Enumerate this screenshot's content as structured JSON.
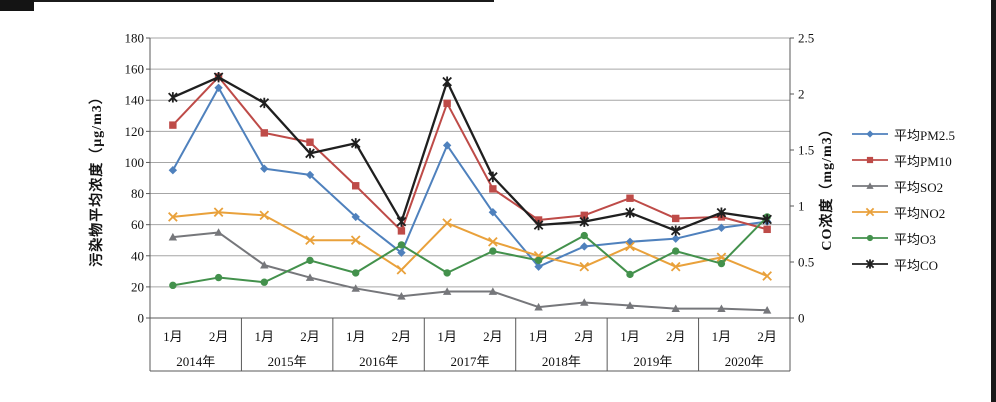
{
  "chart_data": {
    "type": "line",
    "title": "",
    "grid": true,
    "legend_position": "right",
    "year_groups": [
      {
        "year": "2014年",
        "months": [
          "1月",
          "2月"
        ]
      },
      {
        "year": "2015年",
        "months": [
          "1月",
          "2月"
        ]
      },
      {
        "year": "2016年",
        "months": [
          "1月",
          "2月"
        ]
      },
      {
        "year": "2017年",
        "months": [
          "1月",
          "2月"
        ]
      },
      {
        "year": "2018年",
        "months": [
          "1月",
          "2月"
        ]
      },
      {
        "year": "2019年",
        "months": [
          "1月",
          "2月"
        ]
      },
      {
        "year": "2020年",
        "months": [
          "1月",
          "2月"
        ]
      }
    ],
    "left_axis": {
      "title": "污染物平均浓度（μg/m3）",
      "min": 0,
      "max": 180,
      "step": 20
    },
    "right_axis": {
      "title": "CO浓度（mg/m3）",
      "min": 0,
      "max": 2.5,
      "step": 0.5
    },
    "series": [
      {
        "key": "pm25",
        "name": "平均PM2.5",
        "color": "#4F81BD",
        "marker": "diamond",
        "axis": "left",
        "values": [
          95,
          148,
          96,
          92,
          65,
          42,
          111,
          68,
          33,
          46,
          49,
          51,
          58,
          62
        ]
      },
      {
        "key": "pm10",
        "name": "平均PM10",
        "color": "#BE4B48",
        "marker": "square",
        "axis": "left",
        "values": [
          124,
          155,
          119,
          113,
          85,
          56,
          138,
          83,
          63,
          66,
          77,
          64,
          65,
          57
        ]
      },
      {
        "key": "so2",
        "name": "平均SO2",
        "color": "#76777B",
        "marker": "triangle",
        "axis": "left",
        "values": [
          52,
          55,
          34,
          26,
          19,
          14,
          17,
          17,
          7,
          10,
          8,
          6,
          6,
          5
        ]
      },
      {
        "key": "no2",
        "name": "平均NO2",
        "color": "#E9A13B",
        "marker": "x",
        "axis": "left",
        "values": [
          65,
          68,
          66,
          50,
          50,
          31,
          61,
          49,
          40,
          33,
          46,
          33,
          39,
          27
        ]
      },
      {
        "key": "o3",
        "name": "平均O3",
        "color": "#43914C",
        "marker": "circle",
        "axis": "left",
        "values": [
          21,
          26,
          23,
          37,
          29,
          47,
          29,
          43,
          37,
          53,
          28,
          43,
          35,
          65
        ]
      },
      {
        "key": "co",
        "name": "平均CO",
        "color": "#1F1F1F",
        "marker": "star",
        "axis": "right",
        "values": [
          1.97,
          2.15,
          1.92,
          1.47,
          1.56,
          0.86,
          2.11,
          1.26,
          0.83,
          0.86,
          0.94,
          0.78,
          0.94,
          0.88
        ]
      }
    ],
    "colors": {
      "gridline": "#a6a6a6",
      "axis": "#595959",
      "tick_text": "#111111"
    }
  }
}
